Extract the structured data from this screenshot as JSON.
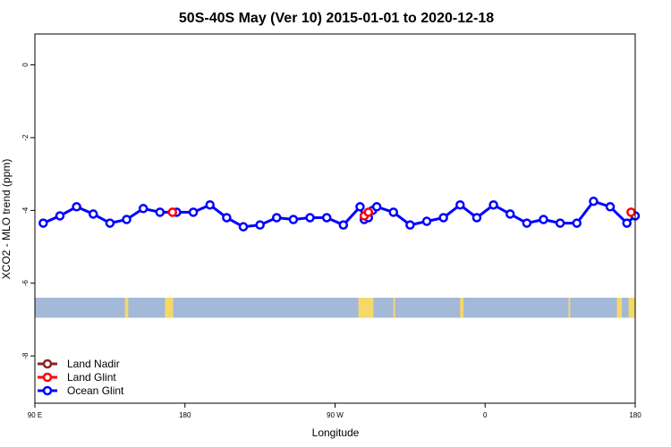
{
  "chart_data": {
    "type": "line",
    "title": "50S-40S May (Ver 10)   2015-01-01 to 2020-12-18",
    "xlabel": "Longitude",
    "ylabel": "XCO2 - MLO trend (ppm)",
    "xlim": [
      90,
      450
    ],
    "ylim": [
      -9.3,
      0.85
    ],
    "x_ticks": [
      {
        "value": 90,
        "label": "90 E"
      },
      {
        "value": 180,
        "label": "180"
      },
      {
        "value": 270,
        "label": "90 W"
      },
      {
        "value": 360,
        "label": "0"
      },
      {
        "value": 450,
        "label": "180"
      }
    ],
    "y_ticks": [
      {
        "value": 0,
        "label": "0"
      },
      {
        "value": -2,
        "label": "-2"
      },
      {
        "value": -4,
        "label": "-4"
      },
      {
        "value": -6,
        "label": "-6"
      },
      {
        "value": -8,
        "label": "-8"
      }
    ],
    "series": [
      {
        "name": "Land Nadir",
        "color": "#8b2323",
        "x": [],
        "y": []
      },
      {
        "name": "Land Glint",
        "color": "#ff0000",
        "x": [
          172.5,
          287.5,
          290,
          447.5
        ],
        "y": [
          -4.05,
          -4.15,
          -4.05,
          -4.05
        ]
      },
      {
        "name": "Ocean Glint",
        "color": "#0000ff",
        "x": [
          95,
          105,
          115,
          125,
          135,
          145,
          155,
          165,
          175,
          185,
          195,
          205,
          215,
          225,
          235,
          245,
          255,
          265,
          275,
          285,
          287.5,
          290,
          292.5,
          295,
          305,
          315,
          325,
          335,
          345,
          355,
          365,
          375,
          385,
          395,
          405,
          415,
          425,
          435,
          445,
          450
        ],
        "y": [
          -4.35,
          -4.15,
          -3.9,
          -4.1,
          -4.35,
          -4.25,
          -3.95,
          -4.05,
          -4.05,
          -4.05,
          -3.85,
          -4.2,
          -4.45,
          -4.4,
          -4.2,
          -4.25,
          -4.2,
          -4.2,
          -4.4,
          -3.9,
          -4.25,
          -4.2,
          -4.0,
          -3.9,
          -4.05,
          -4.4,
          -4.3,
          -4.2,
          -3.85,
          -4.2,
          -3.85,
          -4.1,
          -4.35,
          -4.25,
          -4.35,
          -4.35,
          -3.75,
          -3.9,
          -4.35,
          -4.15
        ]
      }
    ],
    "map_strip": {
      "y_top": -6.4,
      "y_bottom": -6.95,
      "ocean_color": "#a4b8d8",
      "land_color": "#f5d86a",
      "land_spans": [
        [
          144,
          146
        ],
        [
          168,
          173
        ],
        [
          284,
          293
        ],
        [
          305,
          306
        ],
        [
          345,
          347
        ],
        [
          410,
          411
        ],
        [
          439,
          442
        ],
        [
          446,
          450
        ]
      ]
    },
    "legend_position": "bottom-left",
    "grid": false
  }
}
